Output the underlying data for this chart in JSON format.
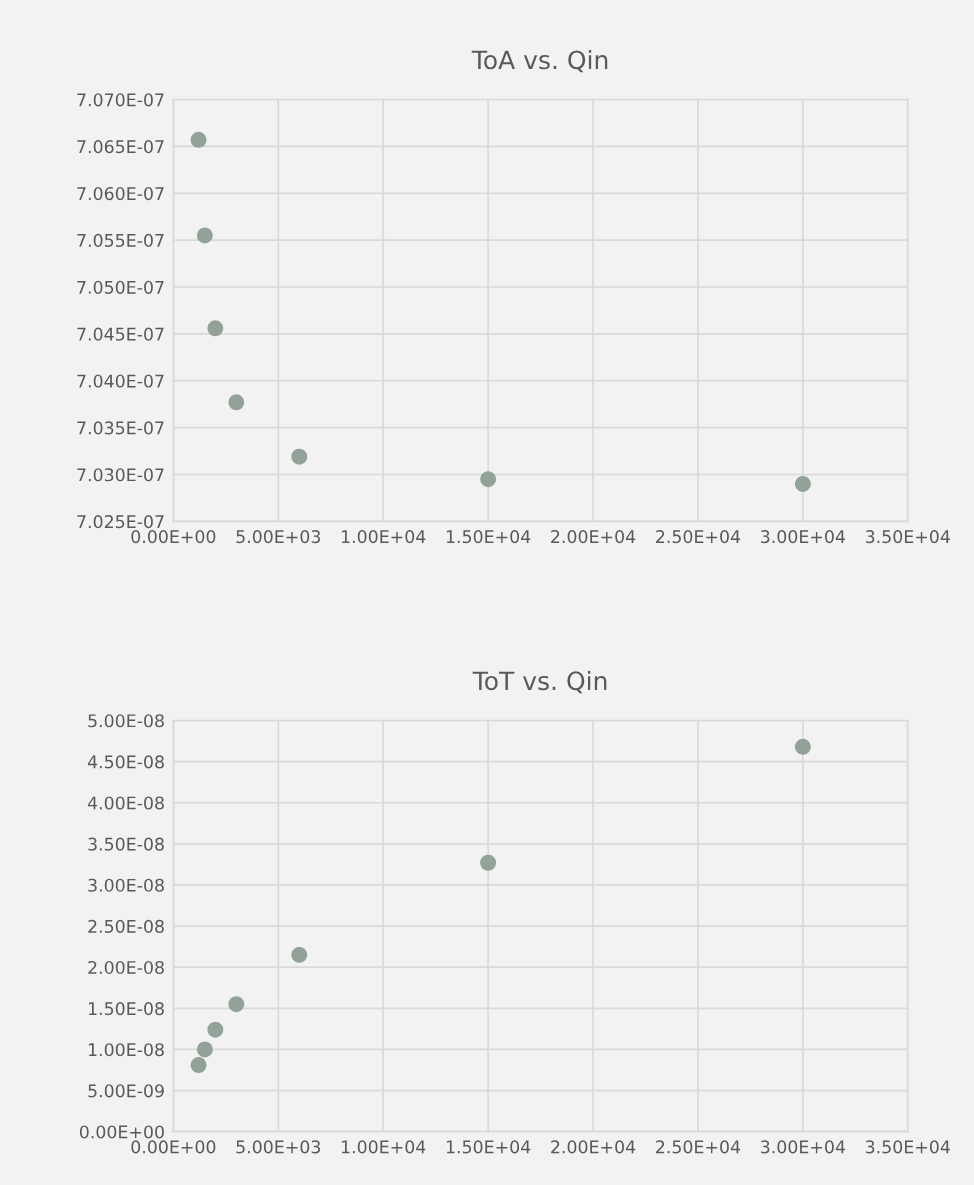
{
  "chart_data": [
    {
      "type": "scatter",
      "title": "ToA vs. Qin",
      "x": [
        1200,
        1500,
        2000,
        3000,
        6000,
        15000,
        30000
      ],
      "series": [
        {
          "color": "#93a299",
          "values": [
            7.0657e-07,
            7.0555e-07,
            7.0456e-07,
            7.0377e-07,
            7.0319e-07,
            7.0295e-07,
            7.029e-07
          ]
        }
      ],
      "marker": "circle",
      "grid": true,
      "xlim": [
        0,
        35000
      ],
      "xticks": [
        {
          "value": 0,
          "label": "0.00E+00"
        },
        {
          "value": 5000,
          "label": "5.00E+03"
        },
        {
          "value": 10000,
          "label": "1.00E+04"
        },
        {
          "value": 15000,
          "label": "1.50E+04"
        },
        {
          "value": 20000,
          "label": "2.00E+04"
        },
        {
          "value": 25000,
          "label": "2.50E+04"
        },
        {
          "value": 30000,
          "label": "3.00E+04"
        },
        {
          "value": 35000,
          "label": "3.50E+04"
        }
      ],
      "ylim": [
        7.025e-07,
        7.07e-07
      ],
      "yticks": [
        {
          "value": 7.025e-07,
          "label": "7.025E-07"
        },
        {
          "value": 7.03e-07,
          "label": "7.030E-07"
        },
        {
          "value": 7.035e-07,
          "label": "7.035E-07"
        },
        {
          "value": 7.04e-07,
          "label": "7.040E-07"
        },
        {
          "value": 7.045e-07,
          "label": "7.045E-07"
        },
        {
          "value": 7.05e-07,
          "label": "7.050E-07"
        },
        {
          "value": 7.055e-07,
          "label": "7.055E-07"
        },
        {
          "value": 7.06e-07,
          "label": "7.060E-07"
        },
        {
          "value": 7.065e-07,
          "label": "7.065E-07"
        },
        {
          "value": 7.07e-07,
          "label": "7.070E-07"
        }
      ]
    },
    {
      "type": "scatter",
      "title": "ToT vs. Qin",
      "x": [
        1200,
        1500,
        2000,
        3000,
        6000,
        15000,
        30000
      ],
      "series": [
        {
          "color": "#93a299",
          "values": [
            8.1e-09,
            1e-08,
            1.24e-08,
            1.55e-08,
            2.15e-08,
            3.27e-08,
            4.68e-08
          ]
        }
      ],
      "marker": "circle",
      "grid": true,
      "xlim": [
        0,
        35000
      ],
      "xticks": [
        {
          "value": 0,
          "label": "0.00E+00"
        },
        {
          "value": 5000,
          "label": "5.00E+03"
        },
        {
          "value": 10000,
          "label": "1.00E+04"
        },
        {
          "value": 15000,
          "label": "1.50E+04"
        },
        {
          "value": 20000,
          "label": "2.00E+04"
        },
        {
          "value": 25000,
          "label": "2.50E+04"
        },
        {
          "value": 30000,
          "label": "3.00E+04"
        },
        {
          "value": 35000,
          "label": "3.50E+04"
        }
      ],
      "ylim": [
        0,
        5e-08
      ],
      "yticks": [
        {
          "value": 0,
          "label": "0.00E+00"
        },
        {
          "value": 5e-09,
          "label": "5.00E-09"
        },
        {
          "value": 1e-08,
          "label": "1.00E-08"
        },
        {
          "value": 1.5e-08,
          "label": "1.50E-08"
        },
        {
          "value": 2e-08,
          "label": "2.00E-08"
        },
        {
          "value": 2.5e-08,
          "label": "2.50E-08"
        },
        {
          "value": 3e-08,
          "label": "3.00E-08"
        },
        {
          "value": 3.5e-08,
          "label": "3.50E-08"
        },
        {
          "value": 4e-08,
          "label": "4.00E-08"
        },
        {
          "value": 4.5e-08,
          "label": "4.50E-08"
        },
        {
          "value": 5e-08,
          "label": "5.00E-08"
        }
      ]
    }
  ]
}
